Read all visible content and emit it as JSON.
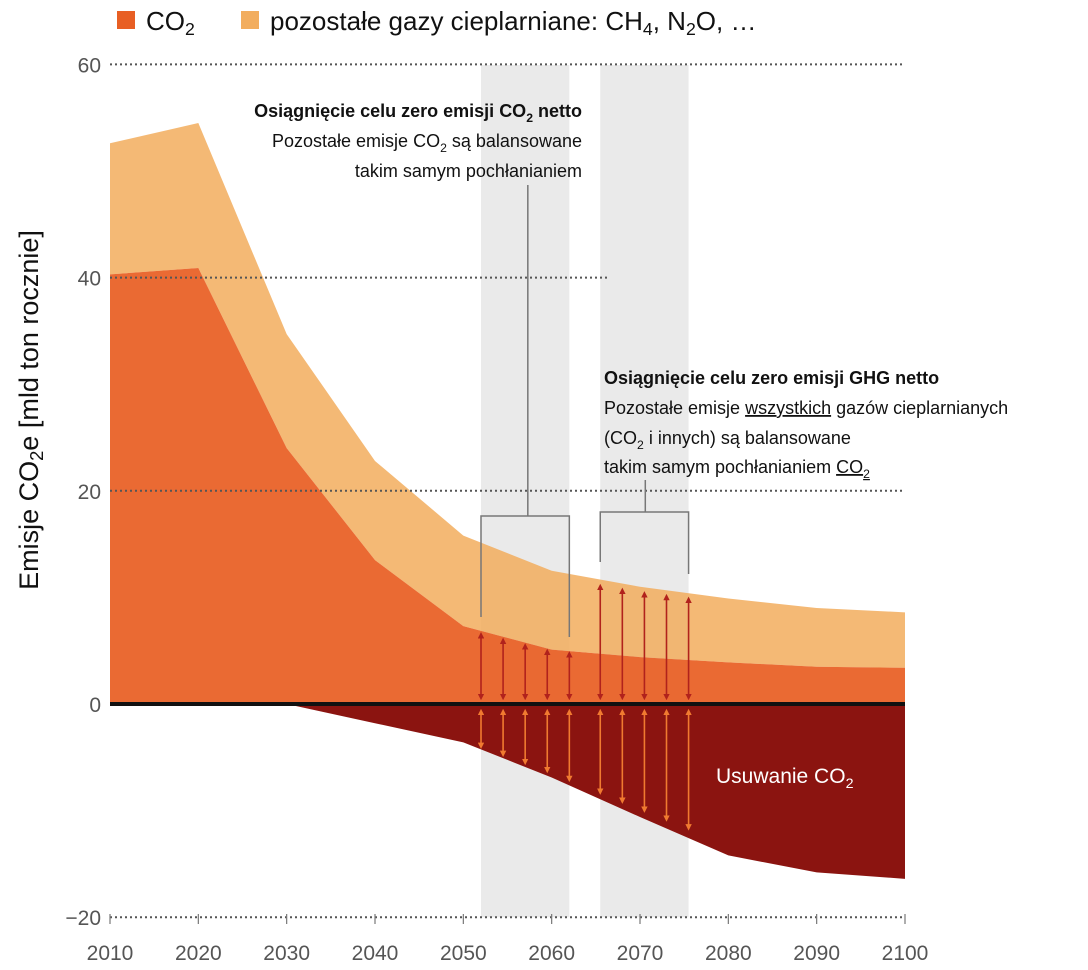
{
  "chart_data": {
    "type": "area",
    "ylabel": "Emisje CO",
    "ylabel_sub": "2",
    "ylabel_rest": "e [mld ton rocznie]",
    "x": [
      2010,
      2020,
      2030,
      2040,
      2050,
      2060,
      2070,
      2080,
      2090,
      2100
    ],
    "xlim": [
      2010,
      2100
    ],
    "ylim": [
      -20,
      60
    ],
    "yticks": [
      -20,
      0,
      20,
      40,
      60
    ],
    "ytick_labels": [
      "−20",
      "0",
      "20",
      "40",
      "60"
    ],
    "xtick_labels": [
      "2010",
      "2020",
      "2030",
      "2040",
      "2050",
      "2060",
      "2070",
      "2080",
      "2090",
      "2100"
    ],
    "legend_position": "top-left",
    "legend": [
      {
        "key": "co2",
        "label": "CO",
        "sub": "2",
        "rest": "",
        "color": "#e85f24"
      },
      {
        "key": "other",
        "label": "pozostałe gazy cieplarniane: CH",
        "sub": "4",
        "rest": ", N",
        "sub2": "2",
        "rest2": "O, …",
        "color": "#f2ad5e"
      }
    ],
    "series": [
      {
        "name": "CO2",
        "key": "co2",
        "color": "#e85f24",
        "values": [
          40.3,
          40.9,
          24.0,
          13.5,
          7.3,
          5.1,
          4.4,
          3.9,
          3.5,
          3.4
        ]
      },
      {
        "name": "pozostałe gazy cieplarniane",
        "key": "other_total",
        "color": "#f2ad5e",
        "values": [
          52.6,
          54.5,
          34.7,
          22.8,
          15.8,
          12.5,
          11.0,
          9.9,
          9.0,
          8.6
        ]
      },
      {
        "name": "Usuwanie CO2",
        "key": "removal",
        "color": "#8b1410",
        "values": [
          0,
          0,
          0,
          -1.8,
          -3.6,
          -6.9,
          -10.6,
          -14.2,
          -15.8,
          -16.4
        ]
      }
    ],
    "bands": [
      {
        "from": 2052,
        "to": 2062,
        "color": "#eaeaea"
      },
      {
        "from": 2065.5,
        "to": 2075.5,
        "color": "#eaeaea"
      }
    ],
    "removal_label": {
      "text": "Usuwanie CO",
      "sub": "2"
    },
    "annotations": [
      {
        "key": "co2_net_zero",
        "title_a": "Osiągnięcie celu zero emisji CO",
        "title_sub": "2",
        "title_b": " netto",
        "line2_a": "Pozostałe emisje CO",
        "line2_sub": "2",
        "line2_b": " są balansowane",
        "line3": "takim samym pochłanianiem"
      },
      {
        "key": "ghg_net_zero",
        "title": "Osiągnięcie celu zero emisji GHG netto",
        "line2_a": "Pozostałe emisje ",
        "line2_u": "wszystkich",
        "line2_b": " gazów cieplarnianych",
        "line3_a": "(CO",
        "line3_sub": "2",
        "line3_b": " i innych) są balansowane",
        "line4_a": "takim samym pochłanianiem ",
        "line4_u": "CO",
        "line4_sub": "2"
      }
    ],
    "arrows": {
      "band1": {
        "x": [
          2052,
          2054.5,
          2057,
          2059.5,
          2062
        ],
        "top": "co2"
      },
      "band2": {
        "x": [
          2065.5,
          2068,
          2070.5,
          2073,
          2075.5
        ],
        "top": "other_total"
      }
    }
  }
}
